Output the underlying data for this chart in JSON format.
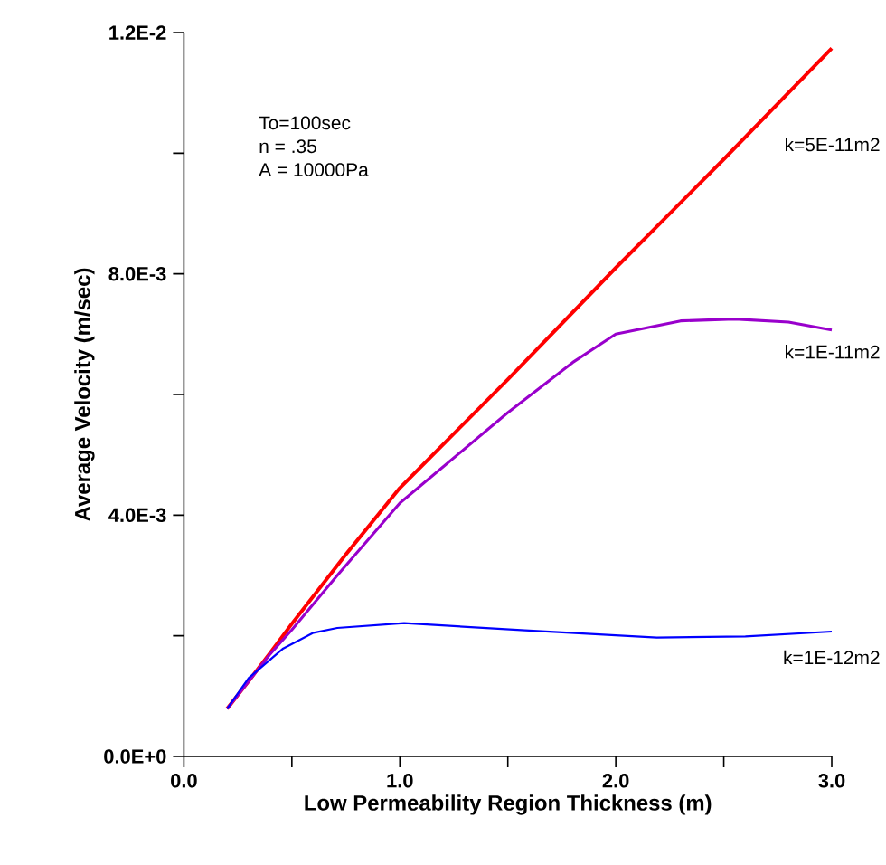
{
  "chart_data": {
    "type": "line",
    "xlabel": "Low Permeability Region Thickness (m)",
    "ylabel": "Average Velocity (m/sec)",
    "xlim": [
      0,
      3
    ],
    "ylim": [
      0,
      0.012
    ],
    "xticks": [
      {
        "value": 0,
        "label": "0.0"
      },
      {
        "value": 0.5,
        "label": null
      },
      {
        "value": 1,
        "label": "1.0"
      },
      {
        "value": 1.5,
        "label": null
      },
      {
        "value": 2,
        "label": "2.0"
      },
      {
        "value": 2.5,
        "label": null
      },
      {
        "value": 3,
        "label": "3.0"
      }
    ],
    "yticks": [
      {
        "value": 0,
        "label": "0.0E+0"
      },
      {
        "value": 0.002,
        "label": null
      },
      {
        "value": 0.004,
        "label": "4.0E-3"
      },
      {
        "value": 0.006,
        "label": null
      },
      {
        "value": 0.008,
        "label": "8.0E-3"
      },
      {
        "value": 0.01,
        "label": null
      },
      {
        "value": 0.012,
        "label": "1.2E-2"
      }
    ],
    "annotations": [
      "To=100sec",
      "n = .35",
      "A = 10000Pa"
    ],
    "grid": false,
    "legend": false,
    "marker": "none",
    "line_style": "solid",
    "series": [
      {
        "name": "k=5E-11m2",
        "color": "#ff0000",
        "x": [
          0.2,
          0.3,
          0.4,
          0.5,
          0.75,
          1.0,
          1.5,
          2.0,
          2.5,
          3.0
        ],
        "values": [
          0.00079,
          0.00125,
          0.00172,
          0.0022,
          0.00335,
          0.00445,
          0.00625,
          0.0081,
          0.0099,
          0.01174
        ]
      },
      {
        "name": "k=1E-11m2",
        "color": "#9900cc",
        "x": [
          0.2,
          0.4,
          0.5,
          0.71,
          1.0,
          1.5,
          1.8,
          2.0,
          2.3,
          2.55,
          2.8,
          3.0
        ],
        "values": [
          0.00079,
          0.0017,
          0.0021,
          0.003,
          0.0042,
          0.0057,
          0.00653,
          0.007,
          0.00722,
          0.00725,
          0.0072,
          0.00707
        ]
      },
      {
        "name": "k=1E-12m2",
        "color": "#0000ff",
        "x": [
          0.2,
          0.3,
          0.46,
          0.6,
          0.71,
          1.02,
          1.58,
          2.19,
          2.6,
          3.0
        ],
        "values": [
          0.00079,
          0.0013,
          0.00179,
          0.00205,
          0.00213,
          0.00221,
          0.00209,
          0.00197,
          0.00199,
          0.00207
        ]
      }
    ]
  }
}
